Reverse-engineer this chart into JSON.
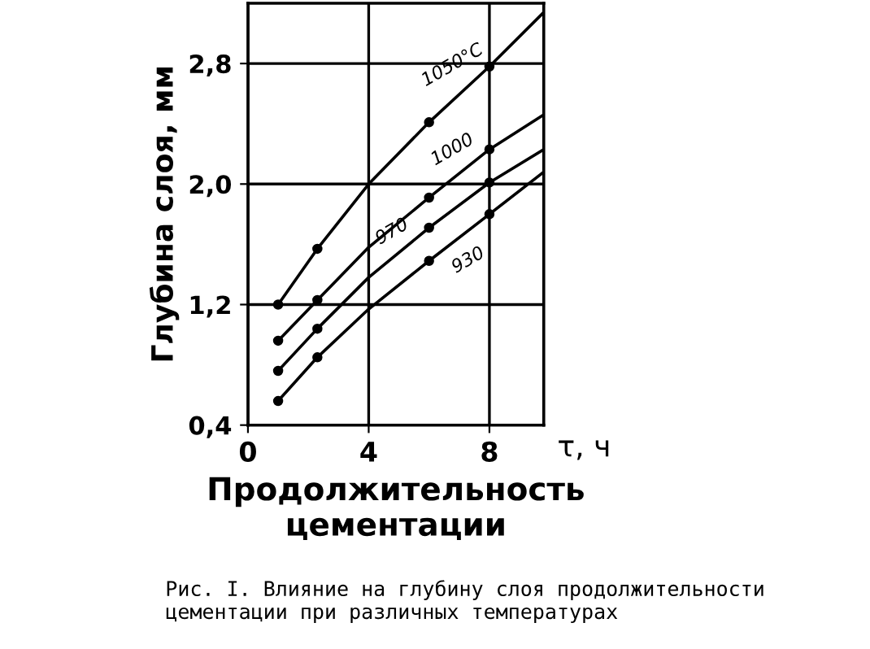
{
  "chart_data": {
    "type": "line",
    "xlabel": "Продолжительность\nцементации",
    "ylabel": "Глубина слоя, мм",
    "x2label": "τ, ч",
    "xlim": [
      0,
      9.8
    ],
    "ylim": [
      0.4,
      3.2
    ],
    "xticks": [
      0,
      4,
      8
    ],
    "yticks": [
      {
        "value": 0.4,
        "label": "0,4"
      },
      {
        "value": 1.2,
        "label": "1,2"
      },
      {
        "value": 2.0,
        "label": "2,0"
      },
      {
        "value": 2.8,
        "label": "2,8"
      }
    ],
    "grid": true,
    "color": "#000000",
    "series": [
      {
        "name": "1050°С",
        "x": [
          1,
          2.3,
          4,
          6,
          8,
          9.8
        ],
        "values": [
          1.2,
          1.57,
          2.0,
          2.41,
          2.78,
          3.14
        ]
      },
      {
        "name": "1000",
        "x": [
          1,
          2.3,
          4,
          6,
          8,
          9.8
        ],
        "values": [
          0.96,
          1.23,
          1.58,
          1.91,
          2.23,
          2.46
        ]
      },
      {
        "name": "970",
        "x": [
          1,
          2.3,
          4,
          6,
          8,
          9.8
        ],
        "values": [
          0.76,
          1.04,
          1.38,
          1.71,
          2.01,
          2.23
        ]
      },
      {
        "name": "930",
        "x": [
          1,
          2.3,
          4,
          6,
          8,
          9.8
        ],
        "values": [
          0.56,
          0.85,
          1.17,
          1.49,
          1.8,
          2.08
        ]
      },
      {
        "type": "scatter",
        "marker": "circle",
        "x": [
          1,
          2.3,
          6,
          8,
          1,
          2.3,
          6,
          8,
          1,
          2.3,
          6,
          8,
          1,
          2.3,
          6,
          8
        ],
        "values": [
          1.2,
          1.57,
          2.41,
          2.78,
          0.96,
          1.23,
          1.91,
          2.23,
          0.76,
          1.04,
          1.71,
          2.01,
          0.56,
          0.85,
          1.49,
          1.8
        ]
      }
    ],
    "annotations": [
      "Рис. I. Влияние на глубину слоя продолжительности\nцементации при различных температурах"
    ]
  }
}
